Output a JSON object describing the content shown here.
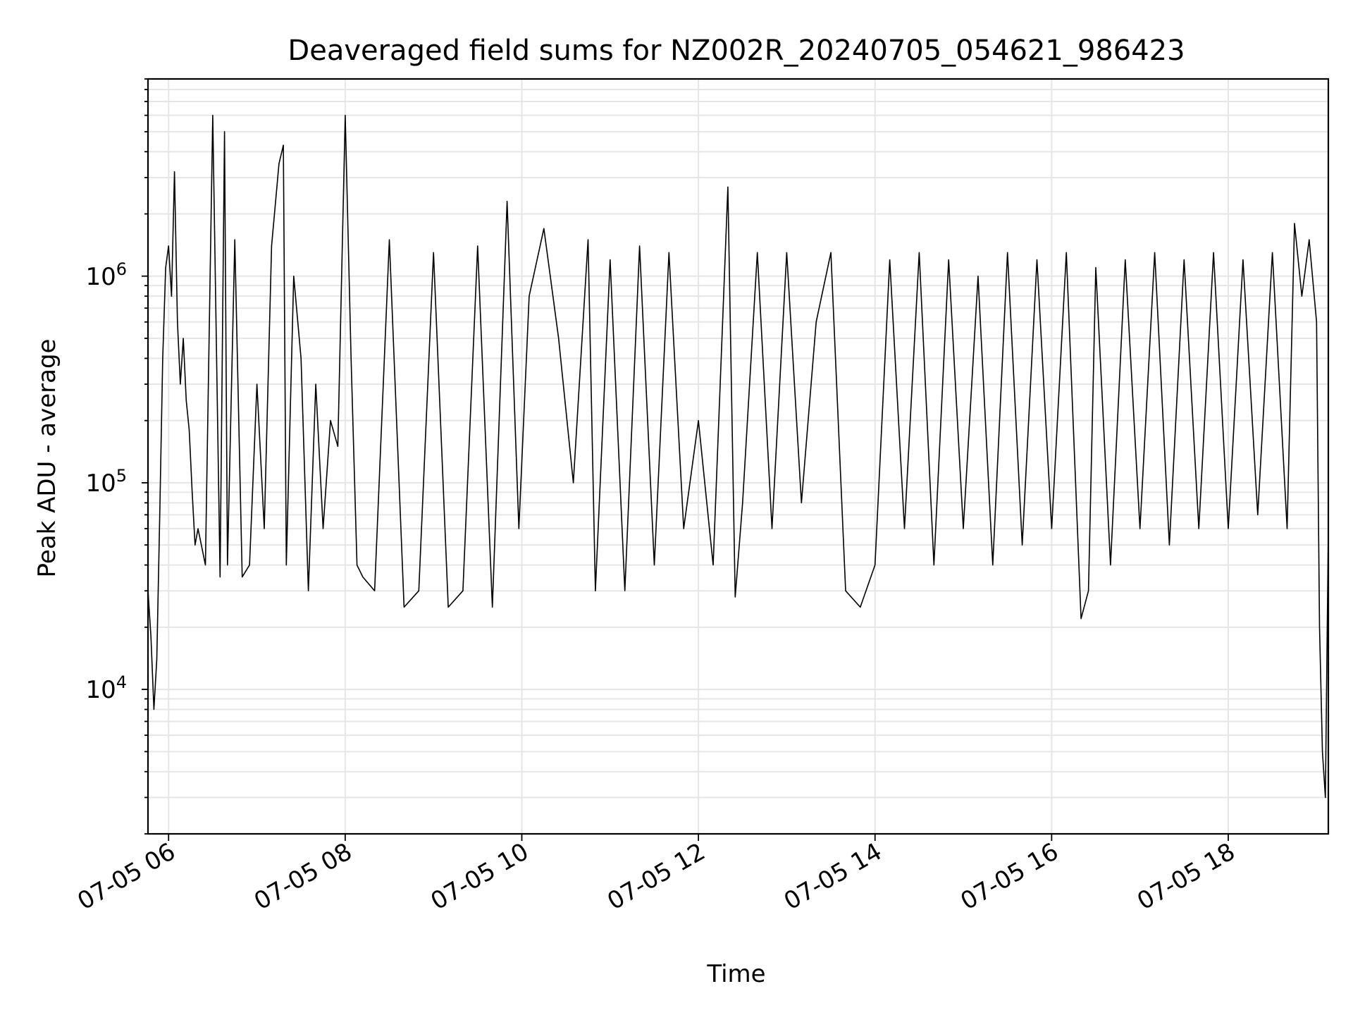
{
  "chart_data": {
    "type": "line",
    "title": "Deaveraged field sums for NZ002R_20240705_054621_986423",
    "xlabel": "Time",
    "ylabel": "Peak ADU - average",
    "yscale": "log",
    "ylim": [
      2000,
      9000000
    ],
    "xlim": [
      "2024-07-05 05:46",
      "2024-07-05 19:08"
    ],
    "grid": true,
    "line_color": "#000000",
    "grid_color": "#e6e6e6",
    "x_ticks": [
      {
        "t": "2024-07-05 06:00",
        "label": "07-05 06"
      },
      {
        "t": "2024-07-05 08:00",
        "label": "07-05 08"
      },
      {
        "t": "2024-07-05 10:00",
        "label": "07-05 10"
      },
      {
        "t": "2024-07-05 12:00",
        "label": "07-05 12"
      },
      {
        "t": "2024-07-05 14:00",
        "label": "07-05 14"
      },
      {
        "t": "2024-07-05 16:00",
        "label": "07-05 16"
      },
      {
        "t": "2024-07-05 18:00",
        "label": "07-05 18"
      }
    ],
    "y_ticks": [
      {
        "value": 10000,
        "base": "10",
        "exp": "4"
      },
      {
        "value": 100000,
        "base": "10",
        "exp": "5"
      },
      {
        "value": 1000000,
        "base": "10",
        "exp": "6"
      }
    ],
    "series": [
      {
        "x": [
          "2024-07-05 05:46",
          "2024-07-05 05:48",
          "2024-07-05 05:50",
          "2024-07-05 05:52",
          "2024-07-05 05:54",
          "2024-07-05 05:56",
          "2024-07-05 05:58",
          "2024-07-05 06:00",
          "2024-07-05 06:02",
          "2024-07-05 06:04",
          "2024-07-05 06:06",
          "2024-07-05 06:08",
          "2024-07-05 06:10",
          "2024-07-05 06:12",
          "2024-07-05 06:14",
          "2024-07-05 06:16",
          "2024-07-05 06:18",
          "2024-07-05 06:20",
          "2024-07-05 06:25",
          "2024-07-05 06:30",
          "2024-07-05 06:35",
          "2024-07-05 06:38",
          "2024-07-05 06:40",
          "2024-07-05 06:45",
          "2024-07-05 06:50",
          "2024-07-05 06:55",
          "2024-07-05 07:00",
          "2024-07-05 07:05",
          "2024-07-05 07:10",
          "2024-07-05 07:15",
          "2024-07-05 07:18",
          "2024-07-05 07:20",
          "2024-07-05 07:25",
          "2024-07-05 07:30",
          "2024-07-05 07:35",
          "2024-07-05 07:40",
          "2024-07-05 07:45",
          "2024-07-05 07:50",
          "2024-07-05 07:55",
          "2024-07-05 08:00",
          "2024-07-05 08:04",
          "2024-07-05 08:08",
          "2024-07-05 08:12",
          "2024-07-05 08:20",
          "2024-07-05 08:30",
          "2024-07-05 08:40",
          "2024-07-05 08:50",
          "2024-07-05 09:00",
          "2024-07-05 09:10",
          "2024-07-05 09:20",
          "2024-07-05 09:30",
          "2024-07-05 09:40",
          "2024-07-05 09:50",
          "2024-07-05 09:58",
          "2024-07-05 10:05",
          "2024-07-05 10:15",
          "2024-07-05 10:25",
          "2024-07-05 10:35",
          "2024-07-05 10:45",
          "2024-07-05 10:50",
          "2024-07-05 11:00",
          "2024-07-05 11:10",
          "2024-07-05 11:20",
          "2024-07-05 11:30",
          "2024-07-05 11:40",
          "2024-07-05 11:50",
          "2024-07-05 12:00",
          "2024-07-05 12:10",
          "2024-07-05 12:20",
          "2024-07-05 12:25",
          "2024-07-05 12:30",
          "2024-07-05 12:40",
          "2024-07-05 12:50",
          "2024-07-05 13:00",
          "2024-07-05 13:10",
          "2024-07-05 13:20",
          "2024-07-05 13:30",
          "2024-07-05 13:40",
          "2024-07-05 13:50",
          "2024-07-05 14:00",
          "2024-07-05 14:10",
          "2024-07-05 14:20",
          "2024-07-05 14:30",
          "2024-07-05 14:40",
          "2024-07-05 14:50",
          "2024-07-05 15:00",
          "2024-07-05 15:10",
          "2024-07-05 15:20",
          "2024-07-05 15:30",
          "2024-07-05 15:40",
          "2024-07-05 15:50",
          "2024-07-05 16:00",
          "2024-07-05 16:10",
          "2024-07-05 16:20",
          "2024-07-05 16:25",
          "2024-07-05 16:30",
          "2024-07-05 16:40",
          "2024-07-05 16:50",
          "2024-07-05 17:00",
          "2024-07-05 17:10",
          "2024-07-05 17:20",
          "2024-07-05 17:30",
          "2024-07-05 17:40",
          "2024-07-05 17:50",
          "2024-07-05 18:00",
          "2024-07-05 18:10",
          "2024-07-05 18:20",
          "2024-07-05 18:30",
          "2024-07-05 18:40",
          "2024-07-05 18:45",
          "2024-07-05 18:50",
          "2024-07-05 18:55",
          "2024-07-05 19:00",
          "2024-07-05 19:02",
          "2024-07-05 19:04",
          "2024-07-05 19:06",
          "2024-07-05 19:08"
        ],
        "y": [
          30000,
          18000,
          8000,
          14000,
          70000,
          400000,
          1100000,
          1400000,
          800000,
          3200000,
          600000,
          300000,
          500000,
          250000,
          180000,
          90000,
          50000,
          60000,
          40000,
          6000000,
          35000,
          5000000,
          40000,
          1500000,
          35000,
          40000,
          300000,
          60000,
          1400000,
          3500000,
          4300000,
          40000,
          1000000,
          400000,
          30000,
          300000,
          60000,
          200000,
          150000,
          6000000,
          400000,
          40000,
          35000,
          30000,
          1500000,
          25000,
          30000,
          1300000,
          25000,
          30000,
          1400000,
          25000,
          2300000,
          60000,
          800000,
          1700000,
          500000,
          100000,
          1500000,
          30000,
          1200000,
          30000,
          1400000,
          40000,
          1300000,
          60000,
          200000,
          40000,
          2700000,
          28000,
          80000,
          1300000,
          60000,
          1300000,
          80000,
          600000,
          1300000,
          30000,
          25000,
          40000,
          1200000,
          60000,
          1300000,
          40000,
          1200000,
          60000,
          1000000,
          40000,
          1300000,
          50000,
          1200000,
          60000,
          1300000,
          22000,
          30000,
          1100000,
          40000,
          1200000,
          60000,
          1300000,
          50000,
          1200000,
          60000,
          1300000,
          60000,
          1200000,
          70000,
          1300000,
          60000,
          1800000,
          800000,
          1500000,
          600000,
          20000,
          5000,
          3000,
          60000
        ]
      }
    ]
  }
}
